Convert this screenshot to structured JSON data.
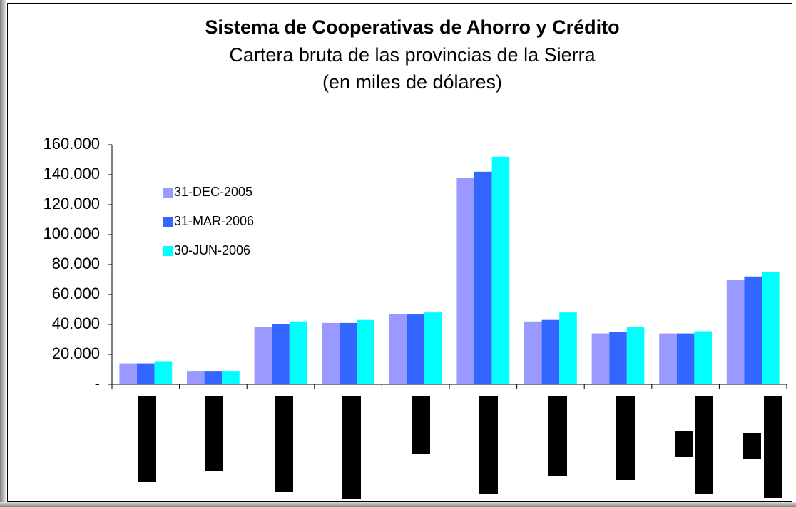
{
  "chart_data": {
    "type": "bar",
    "title": "Sistema de Cooperativas de Ahorro y Crédito",
    "subtitle": [
      "Cartera bruta de las provincias de la Sierra",
      "(en miles de dólares)"
    ],
    "categories": [
      null,
      null,
      null,
      null,
      null,
      null,
      null,
      null,
      null,
      null
    ],
    "series": [
      {
        "name": "31-DEC-2005",
        "color": "#9999ff",
        "values": [
          14000,
          9000,
          38500,
          41000,
          47000,
          138000,
          42000,
          34000,
          34000,
          70000
        ]
      },
      {
        "name": "31-MAR-2006",
        "color": "#3366ff",
        "values": [
          14000,
          9000,
          40000,
          41000,
          47000,
          142000,
          43000,
          35000,
          34000,
          72000
        ]
      },
      {
        "name": "30-JUN-2006",
        "color": "#00ffff",
        "values": [
          15500,
          9000,
          42000,
          43000,
          48000,
          152000,
          48000,
          38500,
          35500,
          75000
        ]
      }
    ],
    "ylim": [
      0,
      160000
    ],
    "yticks": [
      {
        "value": 0,
        "label": "-"
      },
      {
        "value": 20000,
        "label": "20.000"
      },
      {
        "value": 40000,
        "label": "40.000"
      },
      {
        "value": 60000,
        "label": "60.000"
      },
      {
        "value": 80000,
        "label": "80.000"
      },
      {
        "value": 100000,
        "label": "100.000"
      },
      {
        "value": 120000,
        "label": "120.000"
      },
      {
        "value": 140000,
        "label": "140.000"
      },
      {
        "value": 160000,
        "label": "160.000"
      }
    ],
    "legend": "upper left"
  }
}
